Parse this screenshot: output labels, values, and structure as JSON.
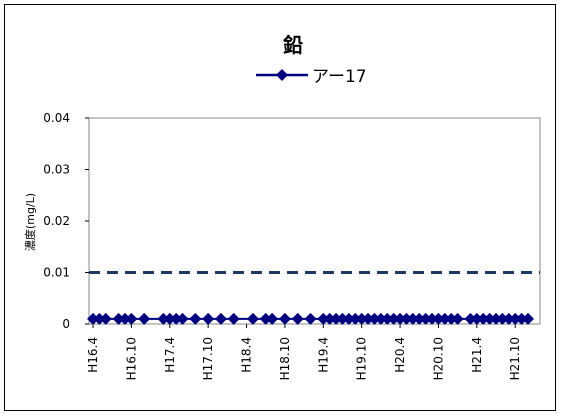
{
  "chart_data": {
    "type": "line",
    "title": "鉛",
    "ylabel": "濃度(mg/L)",
    "xlabel": "",
    "ylim": [
      0,
      0.04
    ],
    "yticks": [
      "0",
      "0.01",
      "0.02",
      "0.03",
      "0.04"
    ],
    "x_tick_labels": [
      "H16.4",
      "H16.10",
      "H17.4",
      "H17.10",
      "H18.4",
      "H18.10",
      "H19.4",
      "H19.10",
      "H20.4",
      "H20.10",
      "H21.4",
      "H21.10"
    ],
    "x_range_months": [
      "H16.4",
      "H21.12"
    ],
    "grid": false,
    "legend_position": "top",
    "reference_line": {
      "value": 0.01,
      "style": "dashed",
      "color": "#1f3864"
    },
    "series": [
      {
        "name": "アー17",
        "color": "#000080",
        "marker": "diamond",
        "x": [
          "H16.4",
          "H16.5",
          "H16.6",
          "H16.8",
          "H16.9",
          "H16.10",
          "H16.12",
          "H17.3",
          "H17.4",
          "H17.5",
          "H17.6",
          "H17.8",
          "H17.10",
          "H17.12",
          "H18.2",
          "H18.5",
          "H18.7",
          "H18.8",
          "H18.10",
          "H18.12",
          "H19.2",
          "H19.4",
          "H19.5",
          "H19.6",
          "H19.7",
          "H19.8",
          "H19.9",
          "H19.10",
          "H19.11",
          "H19.12",
          "H20.1",
          "H20.2",
          "H20.3",
          "H20.4",
          "H20.5",
          "H20.6",
          "H20.7",
          "H20.8",
          "H20.9",
          "H20.10",
          "H20.11",
          "H20.12",
          "H21.1",
          "H21.3",
          "H21.4",
          "H21.5",
          "H21.6",
          "H21.7",
          "H21.8",
          "H21.9",
          "H21.10",
          "H21.11",
          "H21.12"
        ],
        "values": [
          0.001,
          0.001,
          0.001,
          0.001,
          0.001,
          0.001,
          0.001,
          0.001,
          0.001,
          0.001,
          0.001,
          0.001,
          0.001,
          0.001,
          0.001,
          0.001,
          0.001,
          0.001,
          0.001,
          0.001,
          0.001,
          0.001,
          0.001,
          0.001,
          0.001,
          0.001,
          0.001,
          0.001,
          0.001,
          0.001,
          0.001,
          0.001,
          0.001,
          0.001,
          0.001,
          0.001,
          0.001,
          0.001,
          0.001,
          0.001,
          0.001,
          0.001,
          0.001,
          0.001,
          0.001,
          0.001,
          0.001,
          0.001,
          0.001,
          0.001,
          0.001,
          0.001,
          0.001
        ]
      }
    ]
  }
}
